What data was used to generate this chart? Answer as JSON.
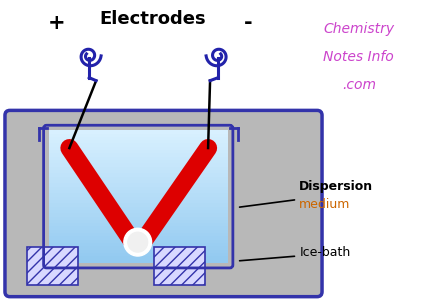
{
  "title": "Electrodes",
  "title_fontsize": 13,
  "plus_label": "+",
  "minus_label": "-",
  "watermark_lines": [
    "Chemistry",
    "Notes Info",
    ".com"
  ],
  "watermark_color": "#cc44cc",
  "dispersion_bold": "Dispersion",
  "dispersion_normal": "medium",
  "icebath_label": "Ice-bath",
  "outer_box_color": "#3333aa",
  "electrode_color": "#dd0000",
  "wire_color": "#2222aa",
  "gray_color": "#b8b8b8",
  "bg_color": "#ffffff",
  "liquid_light": "#d8f0ff",
  "liquid_dark": "#90c8f0"
}
